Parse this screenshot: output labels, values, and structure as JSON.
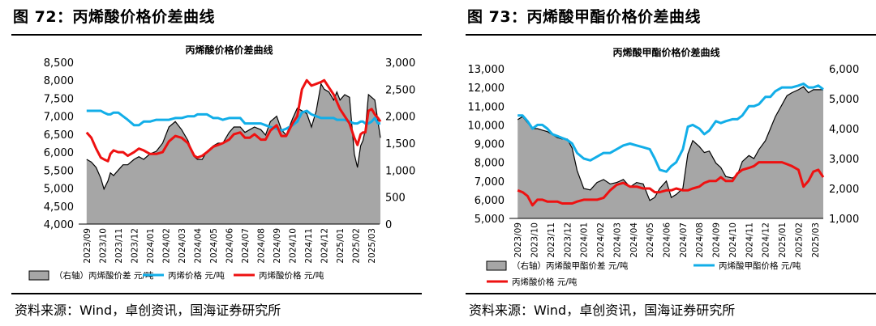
{
  "figures": [
    {
      "title": "图 72：丙烯酸价格价差曲线",
      "source": "资料来源：Wind，卓创资讯，国海证券研究所",
      "chart_data": {
        "type": "area",
        "title": "丙烯酸价格价差曲线",
        "x_ticks": [
          "2023/09",
          "2023/10",
          "2023/11",
          "2023/12",
          "2024/01",
          "2024/02",
          "2024/03",
          "2024/04",
          "2024/05",
          "2024/06",
          "2024/07",
          "2024/08",
          "2024/09",
          "2024/10",
          "2024/11",
          "2024/12",
          "2025/01",
          "2025/02",
          "2025/03"
        ],
        "x": [
          0,
          0.3,
          0.6,
          0.9,
          1.1,
          1.35,
          1.5,
          1.7,
          2.0,
          2.3,
          2.6,
          3.0,
          3.3,
          3.6,
          4.0,
          4.4,
          4.8,
          5.2,
          5.6,
          6.0,
          6.4,
          6.8,
          7.0,
          7.3,
          7.6,
          8.0,
          8.3,
          8.6,
          9.0,
          9.3,
          9.7,
          10.0,
          10.3,
          10.6,
          11.0,
          11.3,
          11.6,
          12.0,
          12.3,
          12.6,
          13.0,
          13.3,
          13.6,
          13.9,
          14.2,
          14.5,
          14.8,
          15.0,
          15.3,
          15.6,
          15.8,
          16.0,
          16.3,
          16.6,
          16.9,
          17.1,
          17.3,
          17.45,
          17.6,
          17.8,
          18.0,
          18.2,
          18.4,
          18.55
        ],
        "y_left": {
          "min": 4000,
          "max": 8500,
          "step": 500,
          "ticks": [
            "4,000",
            "4,500",
            "5,000",
            "5,500",
            "6,000",
            "6,500",
            "7,000",
            "7,500",
            "8,000",
            "8,500"
          ]
        },
        "y_right": {
          "min": 0,
          "max": 3000,
          "step": 500,
          "ticks": [
            "0",
            "500",
            "1,000",
            "1,500",
            "2,000",
            "2,500",
            "3,000"
          ]
        },
        "series": [
          {
            "name": "（右轴）丙烯酸价差  元/吨",
            "axis": "right",
            "kind": "area",
            "color": "#a6a6a6",
            "values": [
              1200,
              1150,
              1050,
              850,
              650,
              800,
              950,
              900,
              1000,
              1100,
              1100,
              1200,
              1250,
              1200,
              1300,
              1350,
              1500,
              1800,
              1900,
              1750,
              1550,
              1250,
              1200,
              1200,
              1350,
              1450,
              1500,
              1500,
              1700,
              1800,
              1800,
              1700,
              1750,
              1800,
              1750,
              1650,
              1900,
              2000,
              1750,
              1650,
              1950,
              2150,
              2100,
              2050,
              1800,
              2100,
              2600,
              2500,
              2450,
              2300,
              2450,
              2300,
              2400,
              2350,
              1300,
              1050,
              1450,
              1550,
              1750,
              2400,
              2350,
              2300,
              1900,
              1600
            ]
          },
          {
            "name": "丙烯价格  元/吨",
            "axis": "left",
            "kind": "line",
            "color": "#12aee8",
            "values": [
              7150,
              7150,
              7150,
              7150,
              7100,
              7050,
              7050,
              7100,
              7100,
              7000,
              6900,
              6750,
              6750,
              6850,
              6850,
              6900,
              6900,
              6900,
              6950,
              6950,
              7000,
              7000,
              7050,
              7050,
              7050,
              6950,
              6950,
              6900,
              6950,
              6950,
              6950,
              6800,
              6800,
              6800,
              6800,
              6750,
              6700,
              6650,
              6600,
              6650,
              6750,
              6850,
              7100,
              7150,
              7050,
              7000,
              6950,
              6950,
              6950,
              6950,
              6900,
              6900,
              6900,
              6850,
              6800,
              6800,
              6850,
              6850,
              6800,
              6800,
              6850,
              6950,
              6800,
              6800
            ]
          },
          {
            "name": "丙烯酸价格  元/吨",
            "axis": "left",
            "kind": "line",
            "color": "#ee1111",
            "values": [
              6550,
              6400,
              6100,
              5850,
              5800,
              5750,
              5950,
              6050,
              6000,
              6000,
              5900,
              6000,
              6100,
              6050,
              5950,
              5950,
              6000,
              6300,
              6450,
              6400,
              6250,
              5900,
              5850,
              5900,
              6000,
              6150,
              6200,
              6250,
              6350,
              6500,
              6550,
              6400,
              6400,
              6500,
              6350,
              6350,
              6600,
              6750,
              6450,
              6450,
              6800,
              7000,
              7750,
              8000,
              7850,
              7900,
              7950,
              8000,
              7800,
              7600,
              7400,
              7200,
              7000,
              6800,
              6400,
              6200,
              6500,
              6550,
              6550,
              7150,
              7200,
              7050,
              6950,
              6850
            ]
          }
        ],
        "legend_position": "bottom"
      }
    },
    {
      "title": "图 73：丙烯酸甲酯价格价差曲线",
      "source": "资料来源：Wind，卓创资讯，国海证券研究所",
      "chart_data": {
        "type": "area",
        "title": "丙烯酸甲酯价格价差曲线",
        "x_ticks": [
          "2023/09",
          "2023/10",
          "2023/11",
          "2023/12",
          "2024/01",
          "2024/02",
          "2024/03",
          "2024/04",
          "2024/05",
          "2024/06",
          "2024/07",
          "2024/08",
          "2024/09",
          "2024/10",
          "2024/11",
          "2024/12",
          "2025/01",
          "2025/02",
          "2025/03"
        ],
        "x": [
          0,
          0.3,
          0.6,
          0.9,
          1.2,
          1.5,
          1.8,
          2.1,
          2.4,
          2.7,
          3.0,
          3.3,
          3.6,
          4.0,
          4.4,
          4.8,
          5.2,
          5.6,
          6.0,
          6.4,
          6.8,
          7.2,
          7.6,
          8.0,
          8.3,
          8.6,
          9.0,
          9.3,
          9.6,
          10.0,
          10.3,
          10.6,
          11.0,
          11.3,
          11.6,
          12.0,
          12.3,
          12.6,
          13.0,
          13.3,
          13.6,
          14.0,
          14.3,
          14.6,
          15.0,
          15.3,
          15.6,
          16.0,
          16.3,
          16.6,
          17.0,
          17.3,
          17.6,
          17.9,
          18.2,
          18.5
        ],
        "y_left": {
          "min": 5000,
          "max": 13000,
          "step": 1000,
          "ticks": [
            "5,000",
            "6,000",
            "7,000",
            "8,000",
            "9,000",
            "10,000",
            "11,000",
            "12,000",
            "13,000"
          ]
        },
        "y_right": {
          "min": 1000,
          "max": 6000,
          "step": 1000,
          "ticks": [
            "1,000",
            "2,000",
            "3,000",
            "4,000",
            "5,000",
            "6,000"
          ]
        },
        "series": [
          {
            "name": "（右轴）丙烯酸甲酯价差  元/吨",
            "axis": "right",
            "kind": "area",
            "color": "#a6a6a6",
            "values": [
              4300,
              4400,
              4200,
              4000,
              4000,
              3950,
              3900,
              3800,
              3700,
              3650,
              3650,
              3350,
              2600,
              2000,
              1950,
              2200,
              2300,
              2150,
              2200,
              2300,
              2050,
              2200,
              2150,
              1600,
              1700,
              2000,
              2250,
              1700,
              1800,
              2000,
              3150,
              3600,
              3400,
              3200,
              3250,
              2850,
              2700,
              2400,
              2350,
              2450,
              2900,
              3100,
              3000,
              3300,
              3600,
              4000,
              4400,
              4800,
              5100,
              5200,
              5300,
              5400,
              5200,
              5300,
              5300,
              5300
            ]
          },
          {
            "name": "丙烯酸甲酯价格  元/吨",
            "axis": "left",
            "kind": "line",
            "color": "#12aee8",
            "values": [
              10500,
              10500,
              10200,
              9800,
              10000,
              10000,
              9800,
              9500,
              9400,
              9300,
              9200,
              9000,
              8500,
              8200,
              8100,
              8300,
              8500,
              8500,
              8700,
              8900,
              9000,
              8900,
              8800,
              8700,
              8200,
              7600,
              7500,
              7800,
              8000,
              8700,
              9900,
              10000,
              9800,
              9500,
              9700,
              10200,
              10100,
              10200,
              10300,
              10300,
              10500,
              11000,
              11000,
              11100,
              11500,
              11500,
              11800,
              12000,
              12000,
              12000,
              12100,
              12200,
              12000,
              12000,
              12100,
              11900
            ]
          },
          {
            "name": "丙烯酸价格  元/吨",
            "axis": "left",
            "kind": "line",
            "color": "#ee1111",
            "values": [
              6500,
              6400,
              6200,
              5700,
              6000,
              6000,
              5900,
              5900,
              5900,
              5800,
              5800,
              5800,
              5900,
              6000,
              6000,
              6000,
              6100,
              6500,
              6800,
              6900,
              6700,
              6700,
              6600,
              6600,
              6400,
              6400,
              6500,
              6500,
              6600,
              6500,
              6500,
              6600,
              6700,
              6900,
              7000,
              7000,
              7200,
              7000,
              7000,
              7400,
              7600,
              7700,
              7800,
              8000,
              8000,
              8000,
              8000,
              8000,
              7900,
              7800,
              7600,
              6700,
              7000,
              7500,
              7600,
              7200
            ]
          }
        ],
        "legend_position": "bottom"
      }
    }
  ]
}
